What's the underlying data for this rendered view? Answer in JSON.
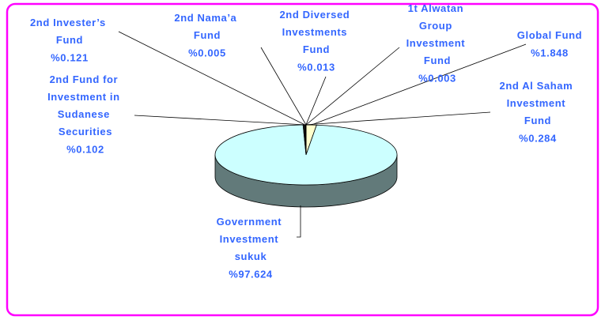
{
  "chart_data": {
    "type": "pie",
    "categories": [
      "Global Fund",
      "Government Investment sukuk",
      "2nd Al Saham Investment Fund",
      "2nd Invester’s Fund",
      "2nd Fund for Investment in Sudanese Securities",
      "2nd Diversed Investments Fund",
      "2nd Nama’a Fund",
      "1t Alwatan Group Investment Fund"
    ],
    "values": [
      1.848,
      97.624,
      0.284,
      0.121,
      0.102,
      0.013,
      0.005,
      0.003
    ],
    "value_labels": [
      "%1.848",
      "%97.624",
      "%0.284",
      "%0.121",
      "%0.102",
      "%0.013",
      "%0.005",
      "%0.003"
    ],
    "colors": [
      "#ffffcc",
      "#ccffff",
      "#222222",
      "#333333",
      "#1a1a1a",
      "#2b2b2b",
      "#111111",
      "#3a3a3a"
    ]
  }
}
